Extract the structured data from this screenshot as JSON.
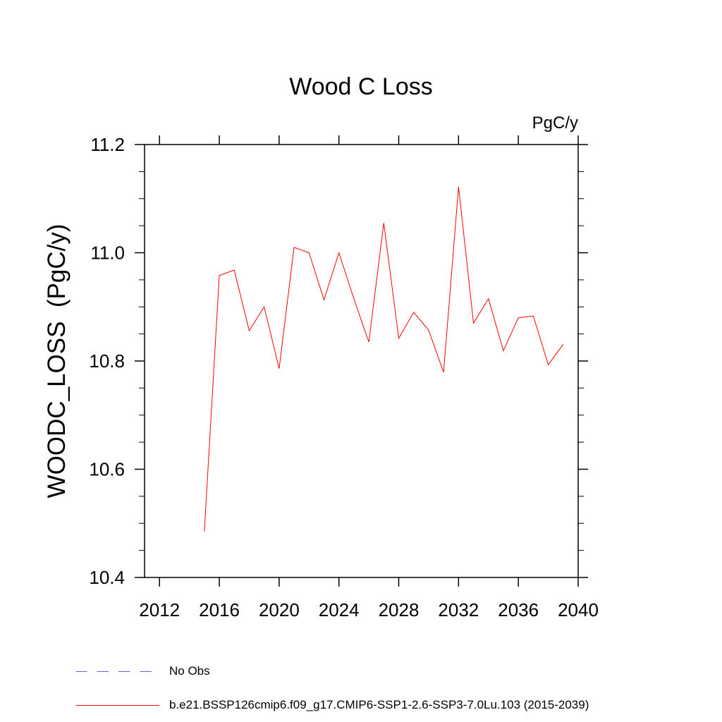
{
  "chart_data": {
    "type": "line",
    "title": "Wood C Loss",
    "units": "PgC/y",
    "xlabel": "",
    "ylabel": "WOODC_LOSS  (PgC/y)",
    "xlim": [
      2011,
      2040
    ],
    "ylim": [
      10.4,
      11.2
    ],
    "xticks": [
      2012,
      2016,
      2020,
      2024,
      2028,
      2032,
      2036,
      2040
    ],
    "yticks": [
      10.4,
      10.6,
      10.8,
      11.0,
      11.2
    ],
    "ytick_labels": [
      "10.4",
      "10.6",
      "10.8",
      "11.0",
      "11.2"
    ],
    "grid": false,
    "series": [
      {
        "name": "b.e21.BSSP126cmip6.f09_g17.CMIP6-SSP1-2.6-SSP3-7.0Lu.103 (2015-2039)",
        "color": "#ff0000",
        "x": [
          2015,
          2016,
          2017,
          2018,
          2019,
          2020,
          2021,
          2022,
          2023,
          2024,
          2025,
          2026,
          2027,
          2028,
          2029,
          2030,
          2031,
          2032,
          2033,
          2034,
          2035,
          2036,
          2037,
          2038,
          2039
        ],
        "y": [
          10.485,
          10.958,
          10.968,
          10.856,
          10.9,
          10.786,
          11.01,
          11.0,
          10.913,
          11.0,
          10.915,
          10.835,
          11.055,
          10.842,
          10.89,
          10.857,
          10.779,
          11.122,
          10.87,
          10.915,
          10.819,
          10.88,
          10.883,
          10.793,
          10.831
        ]
      }
    ]
  },
  "legend": [
    {
      "label": "No Obs",
      "color": "#6a5acd",
      "style": "dashed"
    },
    {
      "label": "b.e21.BSSP126cmip6.f09_g17.CMIP6-SSP1-2.6-SSP3-7.0Lu.103 (2015-2039)",
      "color": "#ff0000",
      "style": "solid"
    }
  ]
}
